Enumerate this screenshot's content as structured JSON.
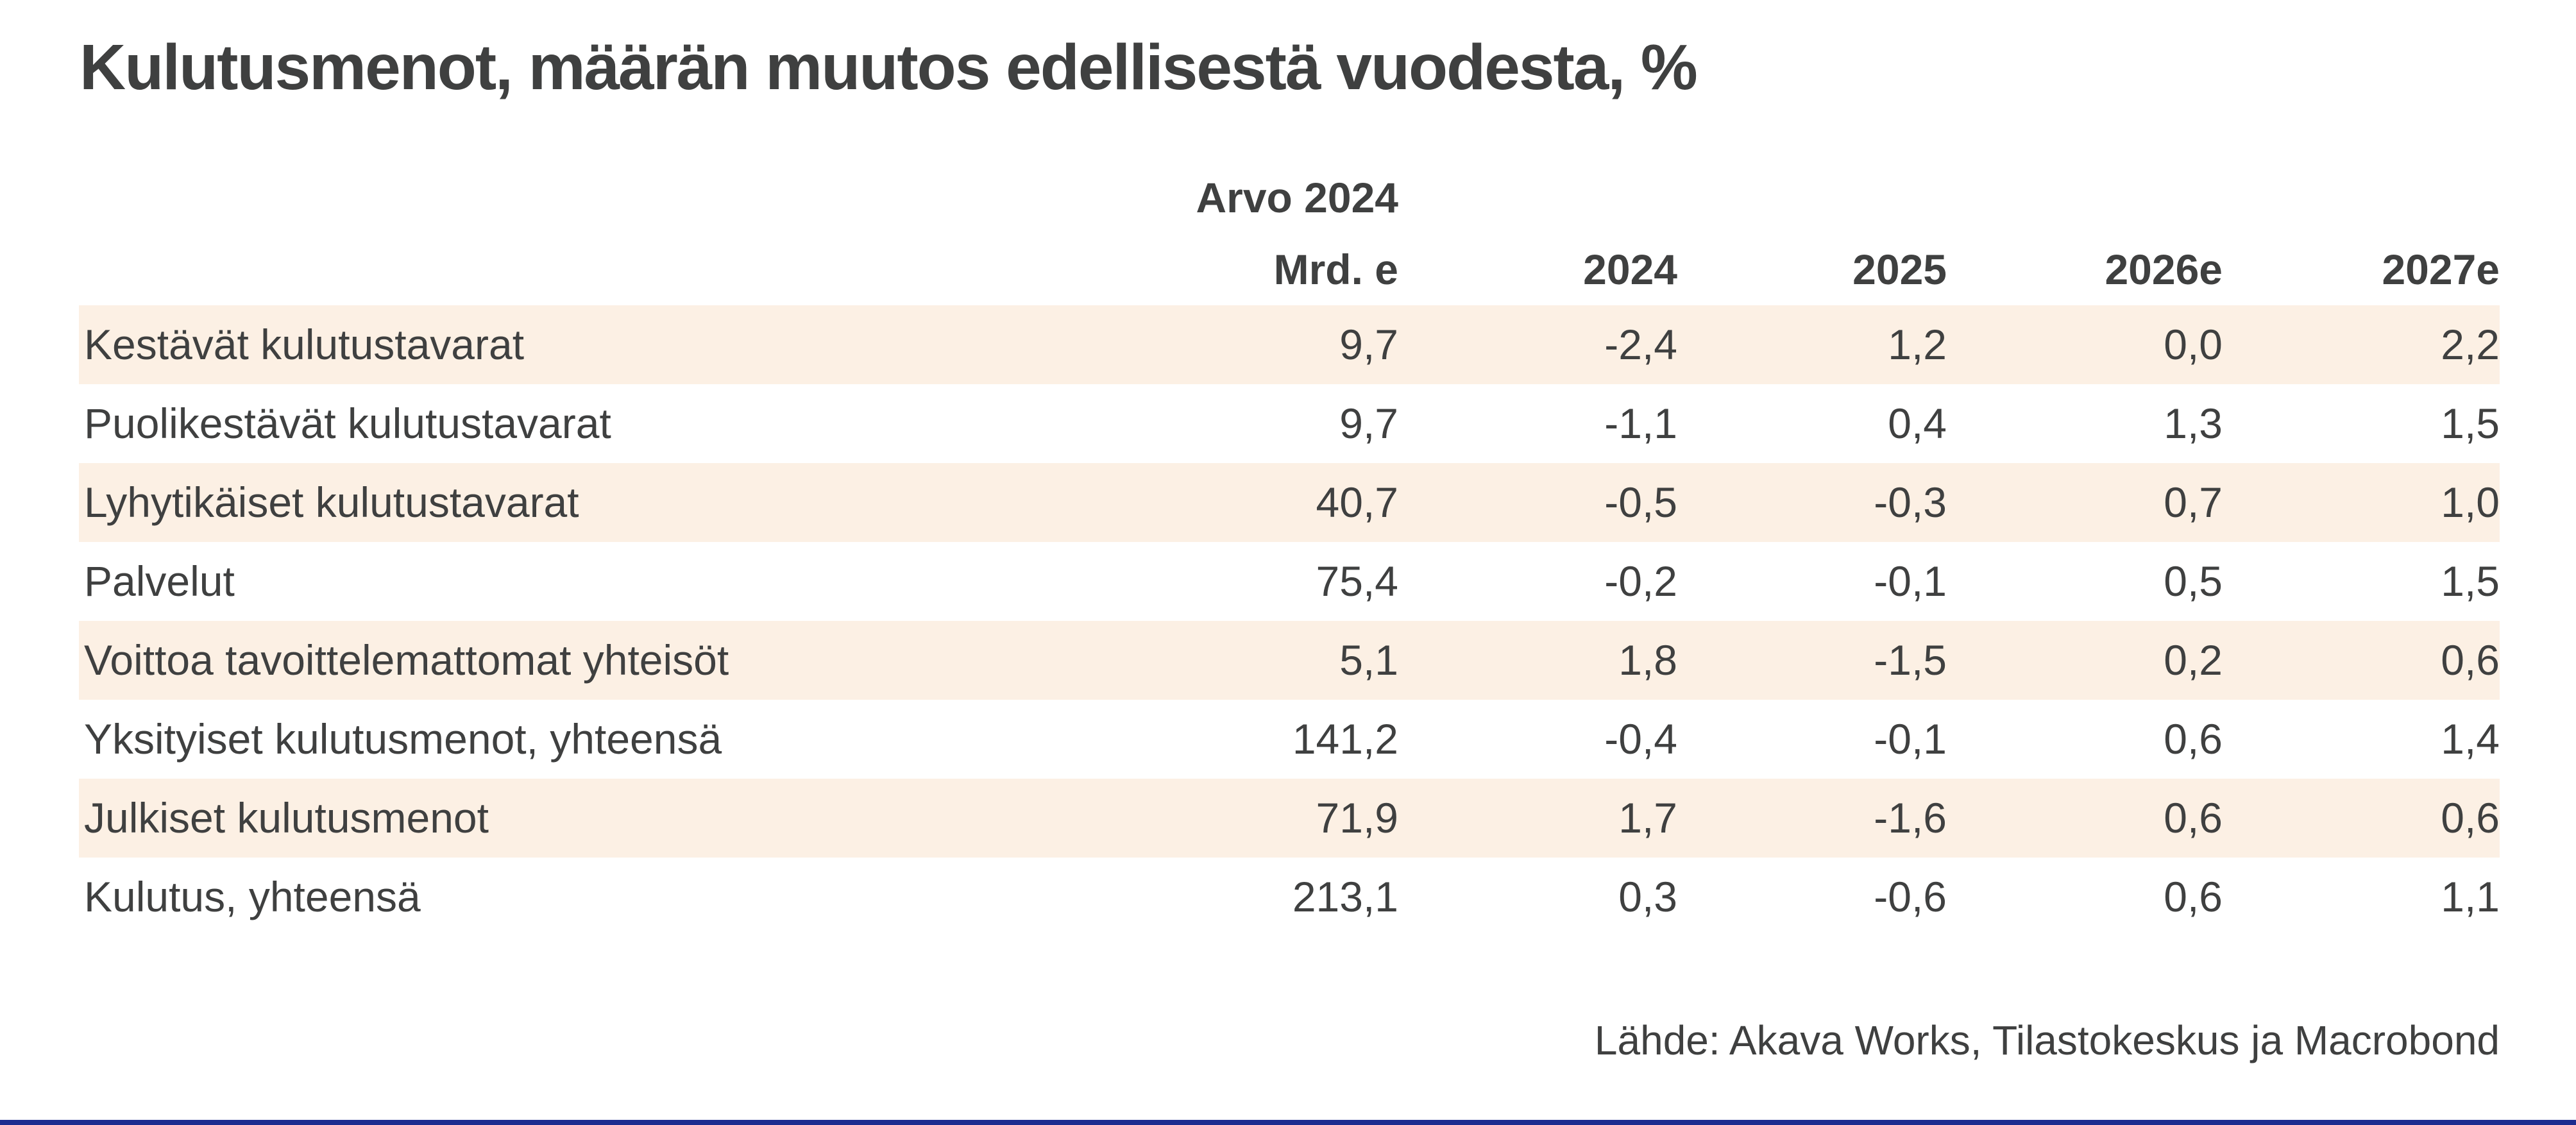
{
  "title": "Kulutusmenot, määrän muutos edellisestä vuodesta, %",
  "table": {
    "header": {
      "value_col_line1": "Arvo 2024",
      "value_col_line2": "Mrd. e",
      "year_cols": [
        "2024",
        "2025",
        "2026e",
        "2027e"
      ]
    },
    "rows": [
      {
        "label": "Kestävät kulutustavarat",
        "values": [
          "9,7",
          "-2,4",
          "1,2",
          "0,0",
          "2,2"
        ]
      },
      {
        "label": "Puolikestävät kulutustavarat",
        "values": [
          "9,7",
          "-1,1",
          "0,4",
          "1,3",
          "1,5"
        ]
      },
      {
        "label": "Lyhytikäiset kulutustavarat",
        "values": [
          "40,7",
          "-0,5",
          "-0,3",
          "0,7",
          "1,0"
        ]
      },
      {
        "label": "Palvelut",
        "values": [
          "75,4",
          "-0,2",
          "-0,1",
          "0,5",
          "1,5"
        ]
      },
      {
        "label": "Voittoa tavoittelemattomat yhteisöt",
        "values": [
          "5,1",
          "1,8",
          "-1,5",
          "0,2",
          "0,6"
        ]
      },
      {
        "label": "Yksityiset kulutusmenot, yhteensä",
        "values": [
          "141,2",
          "-0,4",
          "-0,1",
          "0,6",
          "1,4"
        ]
      },
      {
        "label": "Julkiset kulutusmenot",
        "values": [
          "71,9",
          "1,7",
          "-1,6",
          "0,6",
          "0,6"
        ]
      },
      {
        "label": "Kulutus, yhteensä",
        "values": [
          "213,1",
          "0,3",
          "-0,6",
          "0,6",
          "1,1"
        ]
      }
    ]
  },
  "footer": {
    "source": "Lähde: Akava Works, Tilastokeskus ja Macrobond"
  },
  "colors": {
    "band": "#fcf0e4",
    "text": "#3f4040",
    "accent": "#1c2b8f",
    "background": "#ffffff"
  },
  "chart_data": {
    "type": "table",
    "title": "Kulutusmenot, määrän muutos edellisestä vuodesta, %",
    "columns": [
      "Arvo 2024 Mrd. e",
      "2024",
      "2025",
      "2026e",
      "2027e"
    ],
    "rows": [
      {
        "label": "Kestävät kulutustavarat",
        "values": [
          9.7,
          -2.4,
          1.2,
          0.0,
          2.2
        ]
      },
      {
        "label": "Puolikestävät kulutustavarat",
        "values": [
          9.7,
          -1.1,
          0.4,
          1.3,
          1.5
        ]
      },
      {
        "label": "Lyhytikäiset kulutustavarat",
        "values": [
          40.7,
          -0.5,
          -0.3,
          0.7,
          1.0
        ]
      },
      {
        "label": "Palvelut",
        "values": [
          75.4,
          -0.2,
          -0.1,
          0.5,
          1.5
        ]
      },
      {
        "label": "Voittoa tavoittelemattomat yhteisöt",
        "values": [
          5.1,
          1.8,
          -1.5,
          0.2,
          0.6
        ]
      },
      {
        "label": "Yksityiset kulutusmenot, yhteensä",
        "values": [
          141.2,
          -0.4,
          -0.1,
          0.6,
          1.4
        ]
      },
      {
        "label": "Julkiset kulutusmenot",
        "values": [
          71.9,
          1.7,
          -1.6,
          0.6,
          0.6
        ]
      },
      {
        "label": "Kulutus, yhteensä",
        "values": [
          213.1,
          0.3,
          -0.6,
          0.6,
          1.1
        ]
      }
    ],
    "source": "Lähde: Akava Works, Tilastokeskus ja Macrobond",
    "layout_hints": {
      "zebra_shaded_row_indices": [
        0,
        2,
        4,
        6
      ],
      "values_alignment": "right",
      "grid": "off"
    }
  }
}
